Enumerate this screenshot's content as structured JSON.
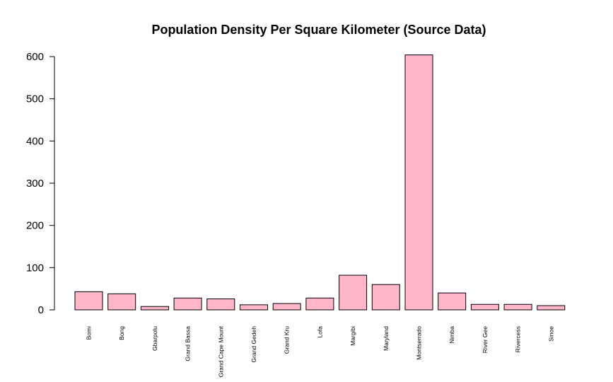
{
  "chart_data": {
    "type": "bar",
    "title": "Population Density Per Square Kilometer (Source Data)",
    "xlabel": "",
    "ylabel": "",
    "categories": [
      "Bomi",
      "Bong",
      "Gbarpolu",
      "Grand Bassa",
      "Grand Cape Mount",
      "Grand Gedeh",
      "Grand Kru",
      "Lofa",
      "Margibi",
      "Maryland",
      "Montserrado",
      "Nimba",
      "River Gee",
      "Rivercess",
      "Sinoe"
    ],
    "values": [
      43,
      38,
      8,
      28,
      26,
      12,
      15,
      28,
      82,
      60,
      604,
      40,
      13,
      13,
      10
    ],
    "ylim": [
      0,
      600
    ],
    "yticks": [
      "0",
      "100",
      "200",
      "300",
      "400",
      "500",
      "600"
    ],
    "bar_color": "#FFB6C8",
    "grid": false
  }
}
